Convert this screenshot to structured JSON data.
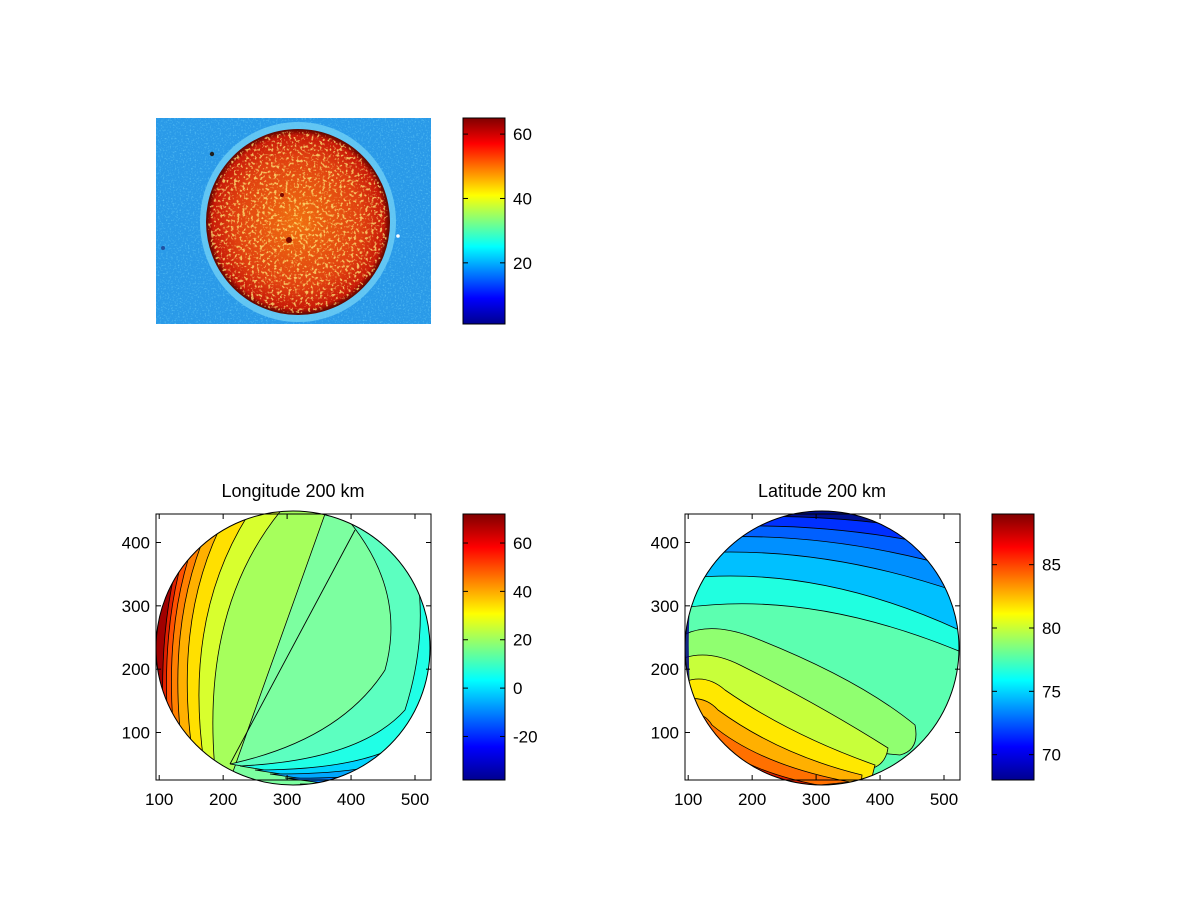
{
  "figure": {
    "panel_image": {
      "colorbar": {
        "ticks": [
          20,
          40,
          60
        ],
        "min": 1,
        "max": 65
      }
    },
    "panel_longitude": {
      "title": "Longitude 200 km",
      "xticks": [
        100,
        200,
        300,
        400,
        500
      ],
      "yticks": [
        100,
        200,
        300,
        400
      ],
      "colorbar": {
        "ticks": [
          -20,
          0,
          20,
          40,
          60
        ],
        "min": -38,
        "max": 72
      }
    },
    "panel_latitude": {
      "title": "Latitude 200 km",
      "xticks": [
        100,
        200,
        300,
        400,
        500
      ],
      "yticks": [
        100,
        200,
        300,
        400
      ],
      "colorbar": {
        "ticks": [
          70,
          75,
          80,
          85
        ],
        "min": 68,
        "max": 89
      }
    }
  },
  "chart_data": [
    {
      "type": "heatmap",
      "title": "",
      "description_values": "image intensity; disk region ~55-65, background ~25-30",
      "colormap": "jet",
      "clim": [
        1,
        65
      ],
      "colorbar_ticks": [
        20,
        40,
        60
      ]
    },
    {
      "type": "heatmap",
      "title": "Longitude 200 km",
      "colormap": "jet",
      "xlim": [
        95,
        525
      ],
      "ylim": [
        25,
        445
      ],
      "xticks": [
        100,
        200,
        300,
        400,
        500
      ],
      "yticks": [
        100,
        200,
        300,
        400
      ],
      "clim": [
        -38,
        72
      ],
      "colorbar_ticks": [
        -20,
        0,
        20,
        40,
        60
      ],
      "contour_levels": [
        -10,
        0,
        10,
        20,
        30,
        40,
        50,
        60,
        70
      ],
      "disk": {
        "center": [
          310,
          240
        ],
        "radius": 210
      }
    },
    {
      "type": "heatmap",
      "title": "Latitude 200 km",
      "colormap": "jet",
      "xlim": [
        95,
        525
      ],
      "ylim": [
        25,
        445
      ],
      "xticks": [
        100,
        200,
        300,
        400,
        500
      ],
      "yticks": [
        100,
        200,
        300,
        400
      ],
      "clim": [
        68,
        89
      ],
      "colorbar_ticks": [
        70,
        75,
        80,
        85
      ],
      "contour_levels": [
        70,
        72,
        74,
        76,
        78,
        80,
        82,
        84,
        86,
        88
      ],
      "disk": {
        "center": [
          310,
          240
        ],
        "radius": 210
      }
    }
  ]
}
